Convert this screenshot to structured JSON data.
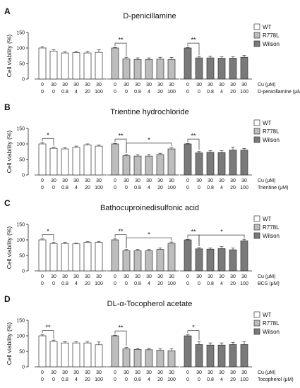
{
  "legend_entries": [
    {
      "label": "WT",
      "color": "#ffffff"
    },
    {
      "label": "R778L",
      "color": "#bdbdbd"
    },
    {
      "label": "Wilson",
      "color": "#7a7a7a"
    }
  ],
  "group_colors": [
    "#ffffff",
    "#bdbdbd",
    "#7a7a7a"
  ],
  "cu_label": "Cu (μM)",
  "cu_values": [
    "0",
    "30",
    "30",
    "30",
    "30",
    "30"
  ],
  "chart_data": [
    {
      "type": "bar",
      "panel_label": "A",
      "title": "D-penicillamine",
      "ylabel": "Cell viability (%)",
      "ylim": [
        0,
        150
      ],
      "yticks": [
        0,
        50,
        100,
        150
      ],
      "agent_label": "D-penicillamine (μM)",
      "agent_values": [
        "0",
        "0",
        "0.8",
        "4",
        "20",
        "100"
      ],
      "groups": [
        "WT",
        "R778L",
        "Wilson"
      ],
      "series": [
        {
          "name": "WT",
          "values": [
            100,
            90,
            84,
            85,
            84,
            86
          ],
          "errors": [
            4,
            4,
            4,
            4,
            5,
            8
          ]
        },
        {
          "name": "R778L",
          "values": [
            100,
            65,
            63,
            63,
            64,
            63
          ],
          "errors": [
            2,
            5,
            5,
            5,
            6,
            6
          ]
        },
        {
          "name": "Wilson",
          "values": [
            100,
            68,
            68,
            67,
            67,
            70
          ],
          "errors": [
            2,
            5,
            5,
            5,
            5,
            6
          ]
        }
      ],
      "annotations": [
        {
          "group": 1,
          "from": 0,
          "to": 1,
          "text": "**"
        },
        {
          "group": 2,
          "from": 0,
          "to": 1,
          "text": "**"
        }
      ]
    },
    {
      "type": "bar",
      "panel_label": "B",
      "title": "Trientine hydrochloride",
      "ylabel": "Cell viability (%)",
      "ylim": [
        0,
        150
      ],
      "yticks": [
        0,
        50,
        100,
        150
      ],
      "agent_label": "Trientine (μM)",
      "agent_values": [
        "0",
        "0",
        "0.8",
        "4",
        "20",
        "100"
      ],
      "groups": [
        "WT",
        "R778L",
        "Wilson"
      ],
      "series": [
        {
          "name": "WT",
          "values": [
            100,
            86,
            84,
            89,
            97,
            93
          ],
          "errors": [
            4,
            4,
            4,
            4,
            3,
            3
          ]
        },
        {
          "name": "R778L",
          "values": [
            100,
            62,
            61,
            61,
            66,
            84
          ],
          "errors": [
            2,
            4,
            4,
            4,
            4,
            5
          ]
        },
        {
          "name": "Wilson",
          "values": [
            100,
            71,
            73,
            72,
            80,
            80
          ],
          "errors": [
            2,
            5,
            5,
            6,
            10,
            5
          ]
        }
      ],
      "annotations": [
        {
          "group": 0,
          "from": 0,
          "to": 1,
          "text": "*"
        },
        {
          "group": 1,
          "from": 0,
          "to": 1,
          "text": "**"
        },
        {
          "group": 1,
          "from": 1,
          "to": 5,
          "text": "*"
        },
        {
          "group": 2,
          "from": 0,
          "to": 1,
          "text": "**"
        }
      ]
    },
    {
      "type": "bar",
      "panel_label": "C",
      "title": "Bathocuproinedisulfonic acid",
      "ylabel": "Cell viability (%)",
      "ylim": [
        0,
        150
      ],
      "yticks": [
        0,
        50,
        100,
        150
      ],
      "agent_label": "BCS (μM)",
      "agent_values": [
        "0",
        "0",
        "0.8",
        "4",
        "20",
        "100"
      ],
      "groups": [
        "WT",
        "R778L",
        "Wilson"
      ],
      "series": [
        {
          "name": "WT",
          "values": [
            100,
            88,
            88,
            87,
            92,
            92
          ],
          "errors": [
            3,
            4,
            4,
            3,
            2,
            3
          ]
        },
        {
          "name": "R778L",
          "values": [
            100,
            65,
            65,
            65,
            69,
            89
          ],
          "errors": [
            3,
            4,
            4,
            4,
            5,
            4
          ]
        },
        {
          "name": "Wilson",
          "values": [
            100,
            71,
            70,
            72,
            68,
            97
          ],
          "errors": [
            2,
            4,
            4,
            6,
            6,
            5
          ]
        }
      ],
      "annotations": [
        {
          "group": 0,
          "from": 0,
          "to": 1,
          "text": "*"
        },
        {
          "group": 1,
          "from": 0,
          "to": 1,
          "text": "**"
        },
        {
          "group": 1,
          "from": 1,
          "to": 5,
          "text": "*"
        },
        {
          "group": 2,
          "from": 0,
          "to": 1,
          "text": "**"
        },
        {
          "group": 2,
          "from": 1,
          "to": 5,
          "text": "*"
        }
      ]
    },
    {
      "type": "bar",
      "panel_label": "D",
      "title": "DL-α-Tocopherol acetate",
      "ylabel": "Cell viability (%)",
      "ylim": [
        0,
        150
      ],
      "yticks": [
        0,
        50,
        100,
        150
      ],
      "agent_label": "Tocopherol (μM)",
      "agent_values": [
        "0",
        "0",
        "0.8",
        "4",
        "20",
        "100"
      ],
      "groups": [
        "WT",
        "R778L",
        "Wilson"
      ],
      "series": [
        {
          "name": "WT",
          "values": [
            100,
            82,
            77,
            77,
            77,
            71
          ],
          "errors": [
            3,
            4,
            4,
            4,
            5,
            9
          ]
        },
        {
          "name": "R778L",
          "values": [
            100,
            58,
            56,
            55,
            53,
            52
          ],
          "errors": [
            2,
            5,
            4,
            5,
            6,
            6
          ]
        },
        {
          "name": "Wilson",
          "values": [
            100,
            72,
            70,
            70,
            72,
            72
          ],
          "errors": [
            3,
            10,
            7,
            7,
            7,
            9
          ]
        }
      ],
      "annotations": [
        {
          "group": 0,
          "from": 0,
          "to": 1,
          "text": "**"
        },
        {
          "group": 1,
          "from": 0,
          "to": 1,
          "text": "**"
        },
        {
          "group": 2,
          "from": 0,
          "to": 1,
          "text": "*"
        }
      ]
    }
  ]
}
